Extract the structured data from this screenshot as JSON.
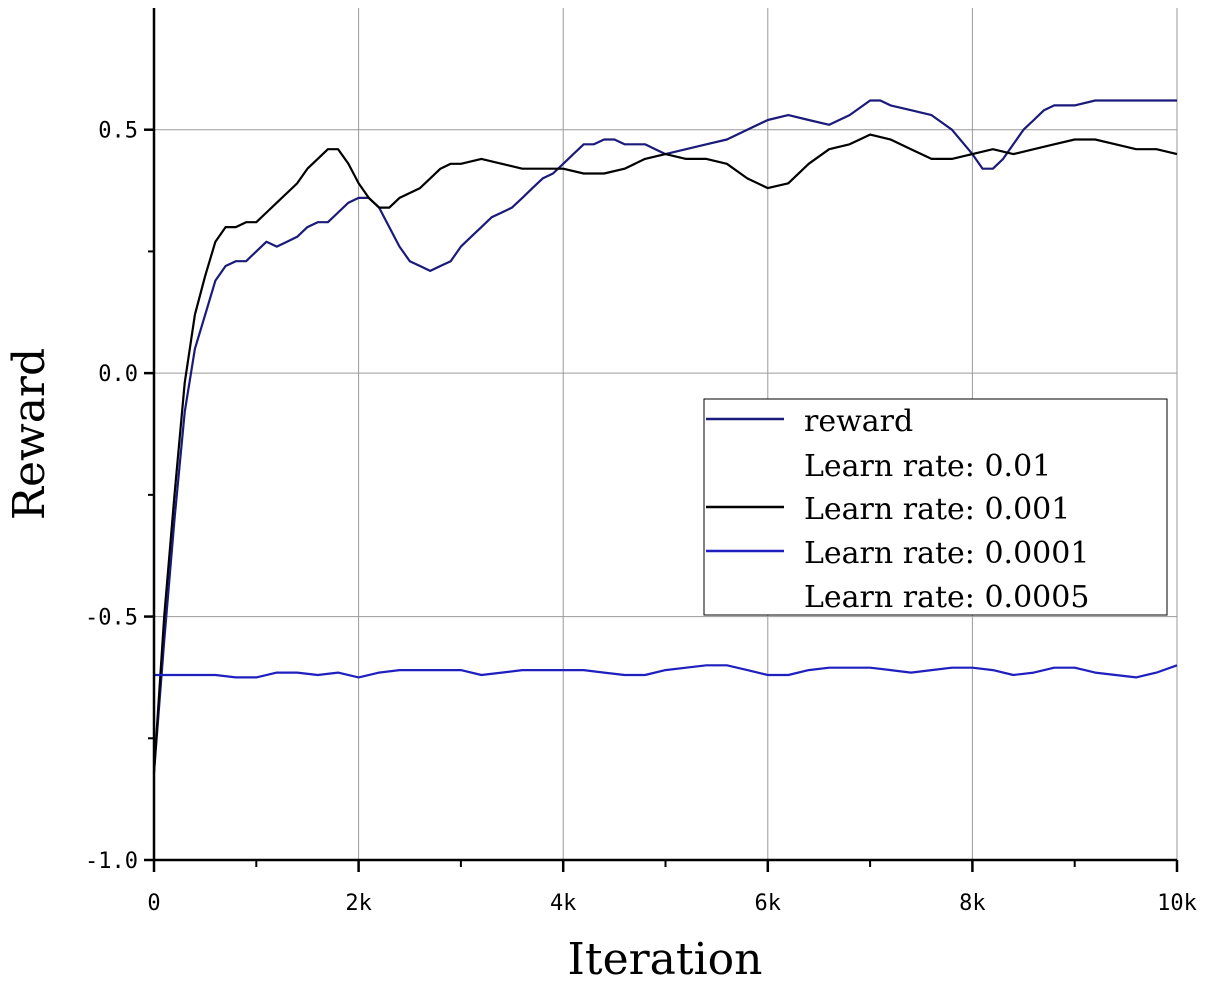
{
  "chart_data": {
    "type": "line",
    "xlabel": "Iteration",
    "ylabel": "Reward",
    "xlim": [
      0,
      10000
    ],
    "ylim": [
      -1.0,
      0.75
    ],
    "xticks": [
      {
        "value": 0,
        "label": "0"
      },
      {
        "value": 2000,
        "label": "2k"
      },
      {
        "value": 4000,
        "label": "4k"
      },
      {
        "value": 6000,
        "label": "6k"
      },
      {
        "value": 8000,
        "label": "8k"
      },
      {
        "value": 10000,
        "label": "10k"
      }
    ],
    "yticks": [
      {
        "value": -1.0,
        "label": "-1.0"
      },
      {
        "value": -0.5,
        "label": "-0.5"
      },
      {
        "value": 0.0,
        "label": "0.0"
      },
      {
        "value": 0.5,
        "label": "0.5"
      }
    ],
    "grid": true,
    "legend_position": "center-right",
    "legend": [
      {
        "label": "reward",
        "color": "#1a1a7a",
        "line": true
      },
      {
        "label": "Learn rate: 0.01",
        "color": null,
        "line": false
      },
      {
        "label": "Learn rate: 0.001",
        "color": "#000000",
        "line": true
      },
      {
        "label": "Learn rate: 0.0001",
        "color": "#1f1fbf",
        "line": true
      },
      {
        "label": "Learn rate: 0.0005",
        "color": null,
        "line": false
      }
    ],
    "series": [
      {
        "name": "reward",
        "color": "#1a1a7a",
        "x": [
          0,
          100,
          200,
          300,
          400,
          500,
          600,
          700,
          800,
          900,
          1000,
          1100,
          1200,
          1300,
          1400,
          1500,
          1600,
          1700,
          1800,
          1900,
          2000,
          2100,
          2200,
          2300,
          2400,
          2500,
          2600,
          2700,
          2800,
          2900,
          3000,
          3100,
          3200,
          3300,
          3400,
          3500,
          3600,
          3700,
          3800,
          3900,
          4000,
          4100,
          4200,
          4300,
          4400,
          4500,
          4600,
          4700,
          4800,
          4900,
          5000,
          5200,
          5400,
          5600,
          5800,
          6000,
          6200,
          6400,
          6600,
          6800,
          7000,
          7100,
          7200,
          7400,
          7600,
          7800,
          8000,
          8100,
          8200,
          8300,
          8400,
          8500,
          8600,
          8700,
          8800,
          9000,
          9200,
          9400,
          9600,
          9800,
          10000
        ],
        "y": [
          -0.82,
          -0.55,
          -0.3,
          -0.08,
          0.05,
          0.12,
          0.19,
          0.22,
          0.23,
          0.23,
          0.25,
          0.27,
          0.26,
          0.27,
          0.28,
          0.3,
          0.31,
          0.31,
          0.33,
          0.35,
          0.36,
          0.36,
          0.34,
          0.3,
          0.26,
          0.23,
          0.22,
          0.21,
          0.22,
          0.23,
          0.26,
          0.28,
          0.3,
          0.32,
          0.33,
          0.34,
          0.36,
          0.38,
          0.4,
          0.41,
          0.43,
          0.45,
          0.47,
          0.47,
          0.48,
          0.48,
          0.47,
          0.47,
          0.47,
          0.46,
          0.45,
          0.46,
          0.47,
          0.48,
          0.5,
          0.52,
          0.53,
          0.52,
          0.51,
          0.53,
          0.56,
          0.56,
          0.55,
          0.54,
          0.53,
          0.5,
          0.45,
          0.42,
          0.42,
          0.44,
          0.47,
          0.5,
          0.52,
          0.54,
          0.55,
          0.55,
          0.56,
          0.56,
          0.56,
          0.56,
          0.56
        ]
      },
      {
        "name": "Learn rate: 0.001",
        "color": "#000000",
        "x": [
          0,
          100,
          200,
          300,
          400,
          500,
          600,
          700,
          800,
          900,
          1000,
          1100,
          1200,
          1300,
          1400,
          1500,
          1600,
          1700,
          1800,
          1900,
          2000,
          2100,
          2200,
          2300,
          2400,
          2500,
          2600,
          2700,
          2800,
          2900,
          3000,
          3200,
          3400,
          3600,
          3800,
          4000,
          4200,
          4400,
          4600,
          4800,
          5000,
          5200,
          5400,
          5600,
          5800,
          6000,
          6200,
          6400,
          6600,
          6800,
          7000,
          7200,
          7400,
          7600,
          7800,
          8000,
          8200,
          8400,
          8600,
          8800,
          9000,
          9200,
          9400,
          9600,
          9800,
          10000
        ],
        "y": [
          -0.82,
          -0.5,
          -0.25,
          -0.02,
          0.12,
          0.2,
          0.27,
          0.3,
          0.3,
          0.31,
          0.31,
          0.33,
          0.35,
          0.37,
          0.39,
          0.42,
          0.44,
          0.46,
          0.46,
          0.43,
          0.39,
          0.36,
          0.34,
          0.34,
          0.36,
          0.37,
          0.38,
          0.4,
          0.42,
          0.43,
          0.43,
          0.44,
          0.43,
          0.42,
          0.42,
          0.42,
          0.41,
          0.41,
          0.42,
          0.44,
          0.45,
          0.44,
          0.44,
          0.43,
          0.4,
          0.38,
          0.39,
          0.43,
          0.46,
          0.47,
          0.49,
          0.48,
          0.46,
          0.44,
          0.44,
          0.45,
          0.46,
          0.45,
          0.46,
          0.47,
          0.48,
          0.48,
          0.47,
          0.46,
          0.46,
          0.45
        ]
      },
      {
        "name": "Learn rate: 0.0001",
        "color": "#1f1fbf",
        "x": [
          0,
          200,
          400,
          600,
          800,
          1000,
          1200,
          1400,
          1600,
          1800,
          2000,
          2200,
          2400,
          2600,
          2800,
          3000,
          3200,
          3400,
          3600,
          3800,
          4000,
          4200,
          4400,
          4600,
          4800,
          5000,
          5200,
          5400,
          5600,
          5800,
          6000,
          6200,
          6400,
          6600,
          6800,
          7000,
          7200,
          7400,
          7600,
          7800,
          8000,
          8200,
          8400,
          8600,
          8800,
          9000,
          9200,
          9400,
          9600,
          9800,
          10000
        ],
        "y": [
          -0.62,
          -0.62,
          -0.62,
          -0.62,
          -0.625,
          -0.625,
          -0.615,
          -0.615,
          -0.62,
          -0.615,
          -0.625,
          -0.615,
          -0.61,
          -0.61,
          -0.61,
          -0.61,
          -0.62,
          -0.615,
          -0.61,
          -0.61,
          -0.61,
          -0.61,
          -0.615,
          -0.62,
          -0.62,
          -0.61,
          -0.605,
          -0.6,
          -0.6,
          -0.61,
          -0.62,
          -0.62,
          -0.61,
          -0.605,
          -0.605,
          -0.605,
          -0.61,
          -0.615,
          -0.61,
          -0.605,
          -0.605,
          -0.61,
          -0.62,
          -0.615,
          -0.605,
          -0.605,
          -0.615,
          -0.62,
          -0.625,
          -0.615,
          -0.6
        ]
      }
    ]
  }
}
